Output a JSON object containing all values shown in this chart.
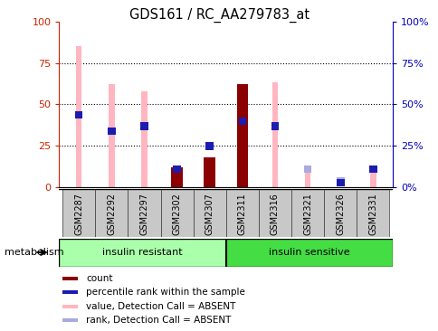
{
  "title": "GDS161 / RC_AA279783_at",
  "samples": [
    "GSM2287",
    "GSM2292",
    "GSM2297",
    "GSM2302",
    "GSM2307",
    "GSM2311",
    "GSM2316",
    "GSM2321",
    "GSM2326",
    "GSM2331"
  ],
  "count_values": [
    0,
    0,
    0,
    12,
    18,
    62,
    0,
    0,
    0,
    0
  ],
  "percentile_rank": [
    46,
    36,
    39,
    13,
    27,
    42,
    39,
    0,
    5,
    13
  ],
  "value_absent": [
    85,
    62,
    58,
    0,
    0,
    0,
    63,
    12,
    0,
    12
  ],
  "rank_absent": [
    46,
    36,
    39,
    0,
    0,
    0,
    39,
    13,
    6,
    0
  ],
  "group1_label": "insulin resistant",
  "group2_label": "insulin sensitive",
  "group1_count": 5,
  "group2_count": 5,
  "ylim": [
    0,
    100
  ],
  "yticks": [
    0,
    25,
    50,
    75,
    100
  ],
  "color_count": "#8B0000",
  "color_percentile": "#1C1CB0",
  "color_value_absent": "#FFB6C1",
  "color_rank_absent": "#AAAADD",
  "color_group1_bg": "#AAFFAA",
  "color_group2_bg": "#44DD44",
  "color_tick_left": "#CC2200",
  "color_tick_right": "#0000BB",
  "legend_items": [
    {
      "label": "count",
      "color": "#8B0000"
    },
    {
      "label": "percentile rank within the sample",
      "color": "#1C1CB0"
    },
    {
      "label": "value, Detection Call = ABSENT",
      "color": "#FFB6C1"
    },
    {
      "label": "rank, Detection Call = ABSENT",
      "color": "#AAAADD"
    }
  ]
}
